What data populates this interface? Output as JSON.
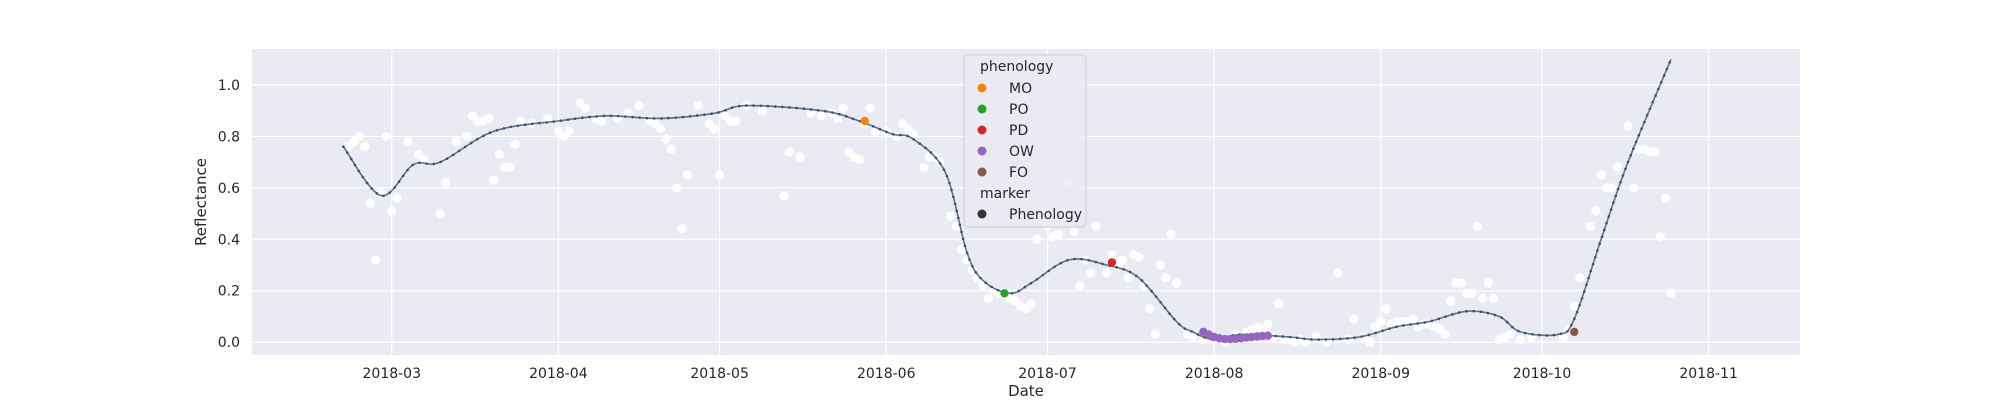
{
  "chart_data": {
    "type": "scatter",
    "xlabel": "Date",
    "ylabel": "Reflectance",
    "x_range": [
      "2018-02-03",
      "2018-11-18"
    ],
    "ylim": [
      -0.05,
      1.14
    ],
    "grid": true,
    "x_ticks": [
      {
        "date": "2018-03-01",
        "label": "2018-03"
      },
      {
        "date": "2018-04-01",
        "label": "2018-04"
      },
      {
        "date": "2018-05-01",
        "label": "2018-05"
      },
      {
        "date": "2018-06-01",
        "label": "2018-06"
      },
      {
        "date": "2018-07-01",
        "label": "2018-07"
      },
      {
        "date": "2018-08-01",
        "label": "2018-08"
      },
      {
        "date": "2018-09-01",
        "label": "2018-09"
      },
      {
        "date": "2018-10-01",
        "label": "2018-10"
      },
      {
        "date": "2018-11-01",
        "label": "2018-11"
      }
    ],
    "y_ticks": [
      {
        "value": 0.0,
        "label": "0.0"
      },
      {
        "value": 0.2,
        "label": "0.2"
      },
      {
        "value": 0.4,
        "label": "0.4"
      },
      {
        "value": 0.6,
        "label": "0.6"
      },
      {
        "value": 0.8,
        "label": "0.8"
      },
      {
        "value": 1.0,
        "label": "1.0"
      }
    ],
    "observations": [
      [
        "2018-02-21",
        0.76
      ],
      [
        "2018-02-22",
        0.78
      ],
      [
        "2018-02-23",
        0.8
      ],
      [
        "2018-02-24",
        0.76
      ],
      [
        "2018-02-25",
        0.54
      ],
      [
        "2018-02-26",
        0.32
      ],
      [
        "2018-02-27",
        0.58
      ],
      [
        "2018-02-28",
        0.8
      ],
      [
        "2018-03-01",
        0.51
      ],
      [
        "2018-03-02",
        0.56
      ],
      [
        "2018-03-04",
        0.78
      ],
      [
        "2018-03-06",
        0.73
      ],
      [
        "2018-03-07",
        0.71
      ],
      [
        "2018-03-10",
        0.5
      ],
      [
        "2018-03-11",
        0.62
      ],
      [
        "2018-03-13",
        0.78
      ],
      [
        "2018-03-15",
        0.8
      ],
      [
        "2018-03-16",
        0.88
      ],
      [
        "2018-03-17",
        0.86
      ],
      [
        "2018-03-18",
        0.86
      ],
      [
        "2018-03-19",
        0.87
      ],
      [
        "2018-03-20",
        0.63
      ],
      [
        "2018-03-21",
        0.73
      ],
      [
        "2018-03-22",
        0.68
      ],
      [
        "2018-03-23",
        0.68
      ],
      [
        "2018-03-24",
        0.77
      ],
      [
        "2018-03-25",
        0.86
      ],
      [
        "2018-03-27",
        0.85
      ],
      [
        "2018-03-30",
        0.87
      ],
      [
        "2018-04-01",
        0.82
      ],
      [
        "2018-04-02",
        0.8
      ],
      [
        "2018-04-03",
        0.82
      ],
      [
        "2018-04-05",
        0.93
      ],
      [
        "2018-04-06",
        0.91
      ],
      [
        "2018-04-08",
        0.87
      ],
      [
        "2018-04-09",
        0.86
      ],
      [
        "2018-04-12",
        0.87
      ],
      [
        "2018-04-14",
        0.89
      ],
      [
        "2018-04-16",
        0.92
      ],
      [
        "2018-04-18",
        0.86
      ],
      [
        "2018-04-19",
        0.85
      ],
      [
        "2018-04-20",
        0.83
      ],
      [
        "2018-04-21",
        0.79
      ],
      [
        "2018-04-22",
        0.75
      ],
      [
        "2018-04-23",
        0.6
      ],
      [
        "2018-04-24",
        0.44
      ],
      [
        "2018-04-25",
        0.65
      ],
      [
        "2018-04-27",
        0.92
      ],
      [
        "2018-04-29",
        0.85
      ],
      [
        "2018-04-30",
        0.83
      ],
      [
        "2018-05-01",
        0.65
      ],
      [
        "2018-05-02",
        0.88
      ],
      [
        "2018-05-03",
        0.86
      ],
      [
        "2018-05-04",
        0.86
      ],
      [
        "2018-05-06",
        0.92
      ],
      [
        "2018-05-09",
        0.9
      ],
      [
        "2018-05-13",
        0.57
      ],
      [
        "2018-05-14",
        0.74
      ],
      [
        "2018-05-16",
        0.72
      ],
      [
        "2018-05-18",
        0.89
      ],
      [
        "2018-05-20",
        0.88
      ],
      [
        "2018-05-22",
        0.89
      ],
      [
        "2018-05-23",
        0.87
      ],
      [
        "2018-05-24",
        0.91
      ],
      [
        "2018-05-25",
        0.74
      ],
      [
        "2018-05-26",
        0.72
      ],
      [
        "2018-05-27",
        0.71
      ],
      [
        "2018-05-28",
        0.85
      ],
      [
        "2018-05-29",
        0.91
      ],
      [
        "2018-05-30",
        0.82
      ],
      [
        "2018-06-01",
        0.82
      ],
      [
        "2018-06-03",
        0.8
      ],
      [
        "2018-06-04",
        0.85
      ],
      [
        "2018-06-05",
        0.83
      ],
      [
        "2018-06-06",
        0.81
      ],
      [
        "2018-06-08",
        0.68
      ],
      [
        "2018-06-09",
        0.72
      ],
      [
        "2018-06-10",
        0.72
      ],
      [
        "2018-06-11",
        0.7
      ],
      [
        "2018-06-13",
        0.49
      ],
      [
        "2018-06-14",
        0.45
      ],
      [
        "2018-06-15",
        0.36
      ],
      [
        "2018-06-16",
        0.32
      ],
      [
        "2018-06-17",
        0.28
      ],
      [
        "2018-06-18",
        0.25
      ],
      [
        "2018-06-19",
        0.22
      ],
      [
        "2018-06-20",
        0.17
      ],
      [
        "2018-06-21",
        0.2
      ],
      [
        "2018-06-22",
        0.19
      ],
      [
        "2018-06-24",
        0.17
      ],
      [
        "2018-06-25",
        0.16
      ],
      [
        "2018-06-26",
        0.14
      ],
      [
        "2018-06-27",
        0.13
      ],
      [
        "2018-06-28",
        0.15
      ],
      [
        "2018-06-29",
        0.4
      ],
      [
        "2018-07-01",
        0.45
      ],
      [
        "2018-07-02",
        0.41
      ],
      [
        "2018-07-03",
        0.42
      ],
      [
        "2018-07-04",
        0.51
      ],
      [
        "2018-07-05",
        0.62
      ],
      [
        "2018-07-06",
        0.43
      ],
      [
        "2018-07-07",
        0.22
      ],
      [
        "2018-07-08",
        0.32
      ],
      [
        "2018-07-09",
        0.27
      ],
      [
        "2018-07-10",
        0.45
      ],
      [
        "2018-07-12",
        0.27
      ],
      [
        "2018-07-13",
        0.34
      ],
      [
        "2018-07-14",
        0.3
      ],
      [
        "2018-07-15",
        0.32
      ],
      [
        "2018-07-16",
        0.25
      ],
      [
        "2018-07-17",
        0.34
      ],
      [
        "2018-07-18",
        0.33
      ],
      [
        "2018-07-19",
        0.22
      ],
      [
        "2018-07-20",
        0.13
      ],
      [
        "2018-07-21",
        0.03
      ],
      [
        "2018-07-22",
        0.3
      ],
      [
        "2018-07-23",
        0.25
      ],
      [
        "2018-07-24",
        0.42
      ],
      [
        "2018-07-25",
        0.23
      ],
      [
        "2018-07-27",
        0.03
      ],
      [
        "2018-07-28",
        0.02
      ],
      [
        "2018-07-30",
        0.01
      ],
      [
        "2018-08-01",
        0.01
      ],
      [
        "2018-08-03",
        0.0
      ],
      [
        "2018-08-05",
        0.03
      ],
      [
        "2018-08-07",
        0.04
      ],
      [
        "2018-08-08",
        0.05
      ],
      [
        "2018-08-09",
        0.06
      ],
      [
        "2018-08-10",
        0.05
      ],
      [
        "2018-08-11",
        0.07
      ],
      [
        "2018-08-12",
        0.02
      ],
      [
        "2018-08-13",
        0.15
      ],
      [
        "2018-08-14",
        0.01
      ],
      [
        "2018-08-15",
        0.01
      ],
      [
        "2018-08-16",
        0.0
      ],
      [
        "2018-08-17",
        0.01
      ],
      [
        "2018-08-18",
        0.0
      ],
      [
        "2018-08-20",
        0.02
      ],
      [
        "2018-08-22",
        0.0
      ],
      [
        "2018-08-24",
        0.27
      ],
      [
        "2018-08-26",
        0.01
      ],
      [
        "2018-08-27",
        0.09
      ],
      [
        "2018-08-29",
        0.02
      ],
      [
        "2018-08-30",
        0.0
      ],
      [
        "2018-08-31",
        0.06
      ],
      [
        "2018-09-01",
        0.08
      ],
      [
        "2018-09-02",
        0.13
      ],
      [
        "2018-09-03",
        0.07
      ],
      [
        "2018-09-04",
        0.08
      ],
      [
        "2018-09-05",
        0.08
      ],
      [
        "2018-09-06",
        0.08
      ],
      [
        "2018-09-07",
        0.09
      ],
      [
        "2018-09-08",
        0.06
      ],
      [
        "2018-09-09",
        0.07
      ],
      [
        "2018-09-10",
        0.07
      ],
      [
        "2018-09-11",
        0.06
      ],
      [
        "2018-09-12",
        0.05
      ],
      [
        "2018-09-13",
        0.03
      ],
      [
        "2018-09-14",
        0.16
      ],
      [
        "2018-09-15",
        0.23
      ],
      [
        "2018-09-16",
        0.23
      ],
      [
        "2018-09-17",
        0.19
      ],
      [
        "2018-09-18",
        0.19
      ],
      [
        "2018-09-19",
        0.45
      ],
      [
        "2018-09-20",
        0.17
      ],
      [
        "2018-09-21",
        0.23
      ],
      [
        "2018-09-22",
        0.17
      ],
      [
        "2018-09-23",
        0.01
      ],
      [
        "2018-09-24",
        0.02
      ],
      [
        "2018-09-25",
        0.03
      ],
      [
        "2018-09-27",
        0.01
      ],
      [
        "2018-09-29",
        0.02
      ],
      [
        "2018-10-05",
        0.02
      ],
      [
        "2018-10-06",
        0.05
      ],
      [
        "2018-10-07",
        0.14
      ],
      [
        "2018-10-08",
        0.25
      ],
      [
        "2018-10-10",
        0.45
      ],
      [
        "2018-10-11",
        0.51
      ],
      [
        "2018-10-12",
        0.65
      ],
      [
        "2018-10-13",
        0.6
      ],
      [
        "2018-10-14",
        0.6
      ],
      [
        "2018-10-15",
        0.68
      ],
      [
        "2018-10-17",
        0.84
      ],
      [
        "2018-10-18",
        0.6
      ],
      [
        "2018-10-19",
        0.75
      ],
      [
        "2018-10-20",
        0.75
      ],
      [
        "2018-10-21",
        0.74
      ],
      [
        "2018-10-22",
        0.74
      ],
      [
        "2018-10-23",
        0.41
      ],
      [
        "2018-10-24",
        0.56
      ],
      [
        "2018-10-25",
        0.19
      ]
    ],
    "smoothed_knots": [
      [
        "2018-02-20",
        0.76
      ],
      [
        "2018-02-27",
        0.57
      ],
      [
        "2018-03-05",
        0.69
      ],
      [
        "2018-03-10",
        0.7
      ],
      [
        "2018-03-20",
        0.82
      ],
      [
        "2018-04-01",
        0.86
      ],
      [
        "2018-04-10",
        0.88
      ],
      [
        "2018-04-20",
        0.87
      ],
      [
        "2018-04-30",
        0.89
      ],
      [
        "2018-05-06",
        0.92
      ],
      [
        "2018-05-20",
        0.9
      ],
      [
        "2018-05-27",
        0.86
      ],
      [
        "2018-06-02",
        0.81
      ],
      [
        "2018-06-06",
        0.79
      ],
      [
        "2018-06-12",
        0.66
      ],
      [
        "2018-06-16",
        0.35
      ],
      [
        "2018-06-19",
        0.24
      ],
      [
        "2018-06-24",
        0.19
      ],
      [
        "2018-06-28",
        0.23
      ],
      [
        "2018-07-05",
        0.32
      ],
      [
        "2018-07-12",
        0.3
      ],
      [
        "2018-07-18",
        0.25
      ],
      [
        "2018-07-25",
        0.08
      ],
      [
        "2018-07-28",
        0.04
      ],
      [
        "2018-08-01",
        0.01
      ],
      [
        "2018-08-06",
        0.03
      ],
      [
        "2018-08-15",
        0.02
      ],
      [
        "2018-08-20",
        0.01
      ],
      [
        "2018-08-28",
        0.02
      ],
      [
        "2018-09-04",
        0.06
      ],
      [
        "2018-09-10",
        0.08
      ],
      [
        "2018-09-17",
        0.12
      ],
      [
        "2018-09-23",
        0.1
      ],
      [
        "2018-09-27",
        0.04
      ],
      [
        "2018-10-04",
        0.03
      ],
      [
        "2018-10-07",
        0.09
      ],
      [
        "2018-10-12",
        0.4
      ],
      [
        "2018-10-17",
        0.7
      ],
      [
        "2018-10-25",
        1.1
      ]
    ],
    "phenology_points": [
      {
        "code": "MO",
        "points": [
          [
            "2018-05-28",
            0.86
          ]
        ]
      },
      {
        "code": "PO",
        "points": [
          [
            "2018-06-23",
            0.19
          ]
        ]
      },
      {
        "code": "PD",
        "points": [
          [
            "2018-07-13",
            0.31
          ]
        ]
      },
      {
        "code": "OW",
        "points": [
          [
            "2018-07-30",
            0.04
          ],
          [
            "2018-07-31",
            0.03
          ],
          [
            "2018-08-01",
            0.02
          ],
          [
            "2018-08-02",
            0.015
          ],
          [
            "2018-08-03",
            0.012
          ],
          [
            "2018-08-04",
            0.012
          ],
          [
            "2018-08-05",
            0.013
          ],
          [
            "2018-08-06",
            0.015
          ],
          [
            "2018-08-07",
            0.018
          ],
          [
            "2018-08-08",
            0.02
          ],
          [
            "2018-08-09",
            0.022
          ],
          [
            "2018-08-10",
            0.024
          ],
          [
            "2018-08-11",
            0.025
          ]
        ]
      },
      {
        "code": "FO",
        "points": [
          [
            "2018-10-07",
            0.04
          ]
        ]
      }
    ],
    "legend": {
      "placement": "upper-center",
      "title_phenology": "phenology",
      "title_marker": "marker",
      "entries": [
        {
          "label": "MO",
          "color": "#ff7f0e"
        },
        {
          "label": "PO",
          "color": "#2ca02c"
        },
        {
          "label": "PD",
          "color": "#d62728"
        },
        {
          "label": "OW",
          "color": "#9467bd"
        },
        {
          "label": "FO",
          "color": "#8c564b"
        }
      ],
      "marker_entry": {
        "label": "Phenology",
        "color": "#333333"
      }
    },
    "colors": {
      "background": "#eaeaf2",
      "grid": "#ffffff",
      "observation": "#ffffff",
      "smoothed_line": "#5c7288",
      "smoothed_marker": "#3f5063"
    }
  }
}
